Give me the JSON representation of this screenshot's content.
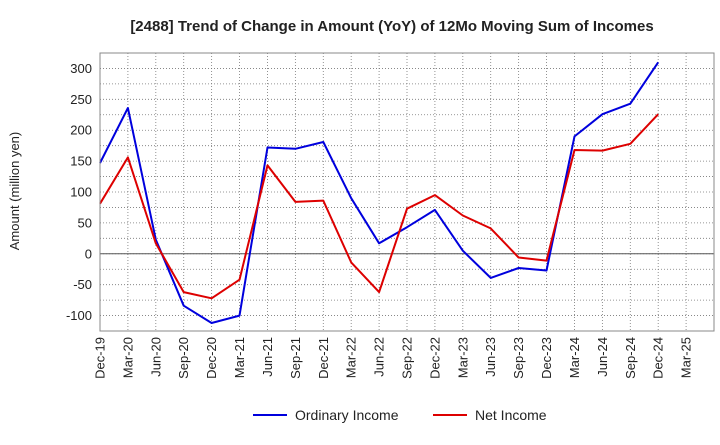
{
  "chart_data": {
    "type": "line",
    "title": "[2488]  Trend of Change in Amount (YoY) of 12Mo Moving Sum of Incomes",
    "ylabel": "Amount (million yen)",
    "xlabel": "",
    "ylim": [
      -125,
      325
    ],
    "yticks": [
      -100,
      -50,
      0,
      50,
      100,
      150,
      200,
      250,
      300
    ],
    "x": [
      "Dec-19",
      "Mar-20",
      "Jun-20",
      "Sep-20",
      "Dec-20",
      "Mar-21",
      "Jun-21",
      "Sep-21",
      "Dec-21",
      "Mar-22",
      "Jun-22",
      "Sep-22",
      "Dec-22",
      "Mar-23",
      "Jun-23",
      "Sep-23",
      "Dec-23",
      "Mar-24",
      "Jun-24",
      "Sep-24",
      "Dec-24",
      "Mar-25"
    ],
    "grid": true,
    "legend_position": "bottom",
    "series": [
      {
        "name": "Ordinary Income",
        "color": "#0000dd",
        "values": [
          147,
          236,
          23,
          -84,
          -112,
          -100,
          172,
          170,
          181,
          90,
          17,
          43,
          71,
          5,
          -39,
          -23,
          -27,
          190,
          226,
          243,
          310,
          null
        ]
      },
      {
        "name": "Net Income",
        "color": "#dd0000",
        "values": [
          81,
          156,
          17,
          -62,
          -72,
          -42,
          143,
          84,
          86,
          -14,
          -62,
          73,
          95,
          62,
          41,
          -6,
          -11,
          168,
          167,
          178,
          226,
          null
        ]
      }
    ]
  }
}
